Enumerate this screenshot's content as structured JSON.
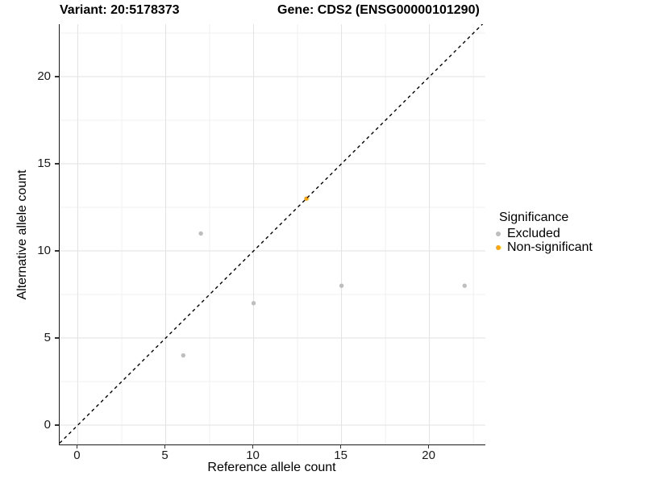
{
  "titles": {
    "variant": "Variant: 20:5178373",
    "gene": "Gene: CDS2 (ENSG00000101290)"
  },
  "chart_data": {
    "type": "scatter",
    "title": "",
    "xlabel": "Reference allele count",
    "ylabel": "Alternative allele count",
    "xlim": [
      -1.03,
      23.18
    ],
    "ylim": [
      -1.11,
      23.01
    ],
    "x_ticks": [
      0,
      5,
      10,
      15,
      20
    ],
    "y_ticks": [
      0,
      5,
      10,
      15,
      20
    ],
    "x_minor_ticks": [
      2.5,
      7.5,
      12.5,
      17.5,
      22.5
    ],
    "y_minor_ticks": [
      2.5,
      7.5,
      12.5,
      17.5,
      22.5
    ],
    "grid": true,
    "legend_position": "right",
    "reference_line": {
      "slope": 1,
      "intercept": 0,
      "style": "dashed",
      "color": "#000000"
    },
    "series": [
      {
        "name": "Excluded",
        "color": "#bebebe",
        "points": [
          [
            6,
            4
          ],
          [
            7,
            11
          ],
          [
            10,
            7
          ],
          [
            15,
            8
          ],
          [
            22,
            8
          ]
        ]
      },
      {
        "name": "Non-significant",
        "color": "#ffa500",
        "points": [
          [
            13,
            13
          ]
        ]
      }
    ]
  },
  "legend": {
    "title": "Significance",
    "items": [
      {
        "label": "Excluded",
        "color": "#bebebe"
      },
      {
        "label": "Non-significant",
        "color": "#ffa500"
      }
    ]
  },
  "colors": {
    "grid_major": "#e2e2e2",
    "grid_minor": "#f0f0f0",
    "axis": "#1a1a1a",
    "excluded": "#bebebe",
    "non_significant": "#ffa500"
  }
}
